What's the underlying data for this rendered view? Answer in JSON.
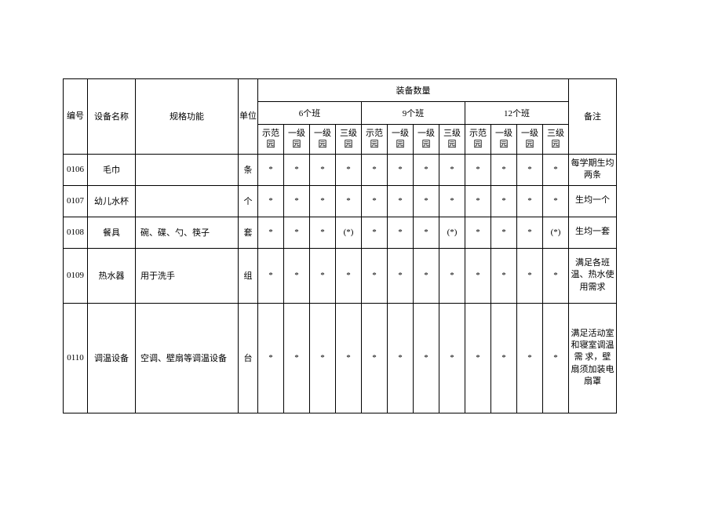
{
  "header": {
    "id": "编号",
    "name": "设备名称",
    "spec": "规格功能",
    "unit": "单位",
    "qty_group": "装备数量",
    "class6": "6个班",
    "class9": "9个班",
    "class12": "12个班",
    "remark": "备注",
    "sub_demo": "示范 园",
    "sub_l1a": "一级 园",
    "sub_l1b": "一级 园",
    "sub_l3": "三级 园"
  },
  "rows": [
    {
      "id": "0106",
      "name": "毛巾",
      "spec": "",
      "unit": "条",
      "c": [
        "*",
        "*",
        "*",
        "*",
        "*",
        "*",
        "*",
        "*",
        "*",
        "*",
        "*",
        "*"
      ],
      "remark": "每学期生均两条"
    },
    {
      "id": "0107",
      "name": "幼儿水杯",
      "spec": "",
      "unit": "个",
      "c": [
        "*",
        "*",
        "*",
        "*",
        "*",
        "*",
        "*",
        "*",
        "*",
        "*",
        "*",
        "*"
      ],
      "remark": "生均一个"
    },
    {
      "id": "0108",
      "name": "餐具",
      "spec": "碗、碟、勺、筷子",
      "unit": "套",
      "c": [
        "*",
        "*",
        "*",
        "(*)",
        "*",
        "*",
        "*",
        "(*)",
        "*",
        "*",
        "*",
        "(*)"
      ],
      "remark": "生均一套"
    },
    {
      "id": "0109",
      "name": "热水器",
      "spec": "用于洗手",
      "unit": "组",
      "c": [
        "*",
        "*",
        "*",
        "*",
        "*",
        "*",
        "*",
        "*",
        "*",
        "*",
        "*",
        "*"
      ],
      "remark": "满足各班温、热水使用需求"
    },
    {
      "id": "0110",
      "name": "调温设备",
      "spec": "空调、壁扇等调温设备",
      "unit": "台",
      "c": [
        "*",
        "*",
        "*",
        "*",
        "*",
        "*",
        "*",
        "*",
        "*",
        "*",
        "*",
        "*"
      ],
      "remark": "满足活动室和寝室调温需 求，壁扇须加装电扇罩"
    }
  ]
}
